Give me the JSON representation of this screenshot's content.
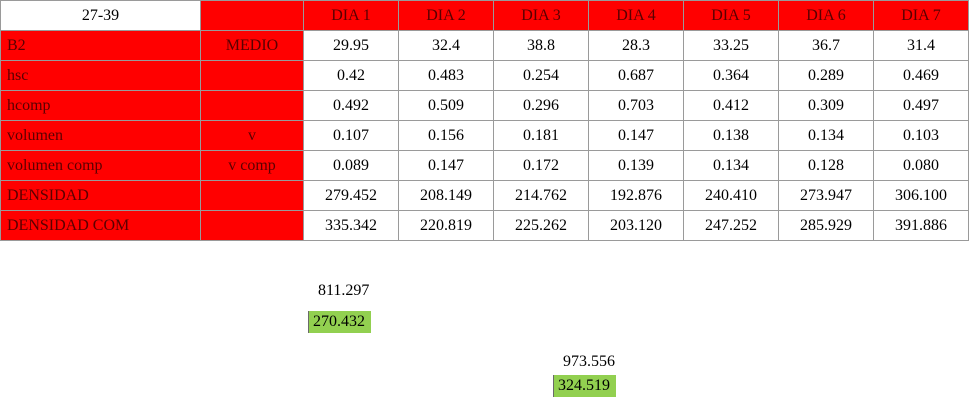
{
  "table": {
    "header": [
      "27-39",
      "",
      "DIA 1",
      "DIA 2",
      "DIA 3",
      "DIA 4",
      "DIA 5",
      "DIA 6",
      "DIA 7"
    ],
    "rows": [
      [
        "B2",
        "MEDIO",
        "29.95",
        "32.4",
        "38.8",
        "28.3",
        "33.25",
        "36.7",
        "31.4"
      ],
      [
        "hsc",
        "",
        "0.42",
        "0.483",
        "0.254",
        "0.687",
        "0.364",
        "0.289",
        "0.469"
      ],
      [
        "hcomp",
        "",
        "0.492",
        "0.509",
        "0.296",
        "0.703",
        "0.412",
        "0.309",
        "0.497"
      ],
      [
        "volumen",
        "v",
        "0.107",
        "0.156",
        "0.181",
        "0.147",
        "0.138",
        "0.134",
        "0.103"
      ],
      [
        "volumen comp",
        "v comp",
        "0.089",
        "0.147",
        "0.172",
        "0.139",
        "0.134",
        "0.128",
        "0.080"
      ],
      [
        "DENSIDAD",
        "",
        "279.452",
        "208.149",
        "214.762",
        "192.876",
        "240.410",
        "273.947",
        "306.100"
      ],
      [
        "DENSIDAD COM",
        "",
        "335.342",
        "220.819",
        "225.262",
        "203.120",
        "247.252",
        "285.929",
        "391.886"
      ]
    ]
  },
  "extras": {
    "sum1": "811.297",
    "avg1": "270.432",
    "sum2": "973.556",
    "avg2": "324.519"
  }
}
